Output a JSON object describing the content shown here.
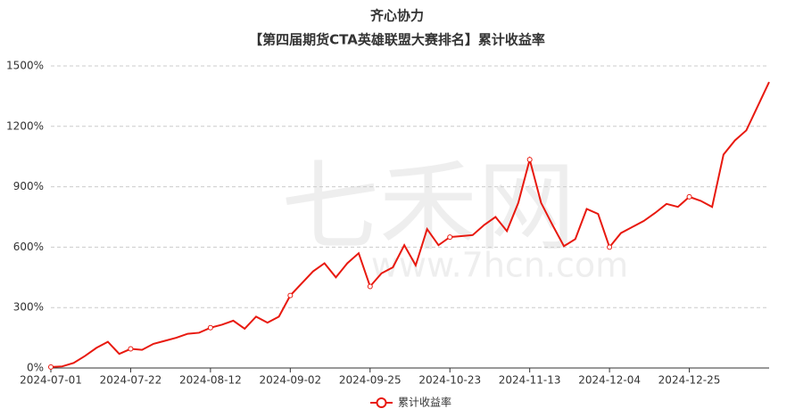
{
  "chart_data": {
    "type": "line",
    "title": "齐心协力",
    "subtitle": "【第四届期货CTA英雄联盟大赛排名】累计收益率",
    "watermark": [
      "七禾网",
      "www.7hcn.com"
    ],
    "categories": [
      "2024-07-01",
      null,
      null,
      null,
      null,
      null,
      null,
      "2024-07-22",
      null,
      null,
      null,
      null,
      null,
      null,
      "2024-08-12",
      null,
      null,
      null,
      null,
      null,
      null,
      "2024-09-02",
      null,
      null,
      null,
      null,
      null,
      null,
      "2024-09-25",
      null,
      null,
      null,
      null,
      null,
      null,
      "2024-10-23",
      null,
      null,
      null,
      null,
      null,
      null,
      "2024-11-13",
      null,
      null,
      null,
      null,
      null,
      null,
      "2024-12-04",
      null,
      null,
      null,
      null,
      null,
      null,
      "2024-12-25",
      null,
      null,
      null,
      null,
      null,
      null,
      null
    ],
    "series": [
      {
        "name": "累计收益率",
        "color": "#e8190f",
        "values": [
          5,
          8,
          25,
          60,
          100,
          130,
          70,
          95,
          90,
          120,
          135,
          150,
          170,
          175,
          200,
          215,
          235,
          195,
          255,
          225,
          255,
          360,
          420,
          480,
          520,
          450,
          520,
          570,
          405,
          470,
          500,
          610,
          510,
          690,
          610,
          650,
          655,
          660,
          710,
          750,
          680,
          820,
          1035,
          820,
          710,
          605,
          640,
          790,
          765,
          600,
          670,
          700,
          730,
          770,
          815,
          800,
          850,
          830,
          800,
          1060,
          1130,
          1180,
          1300,
          1420
        ]
      }
    ],
    "ylim": [
      0,
      1500
    ],
    "yticks": [
      {
        "value": 0,
        "label": "0%"
      },
      {
        "value": 300,
        "label": "300%"
      },
      {
        "value": 600,
        "label": "600%"
      },
      {
        "value": 900,
        "label": "900%"
      },
      {
        "value": 1200,
        "label": "1200%"
      },
      {
        "value": 1500,
        "label": "1500%"
      }
    ],
    "grid": true
  }
}
